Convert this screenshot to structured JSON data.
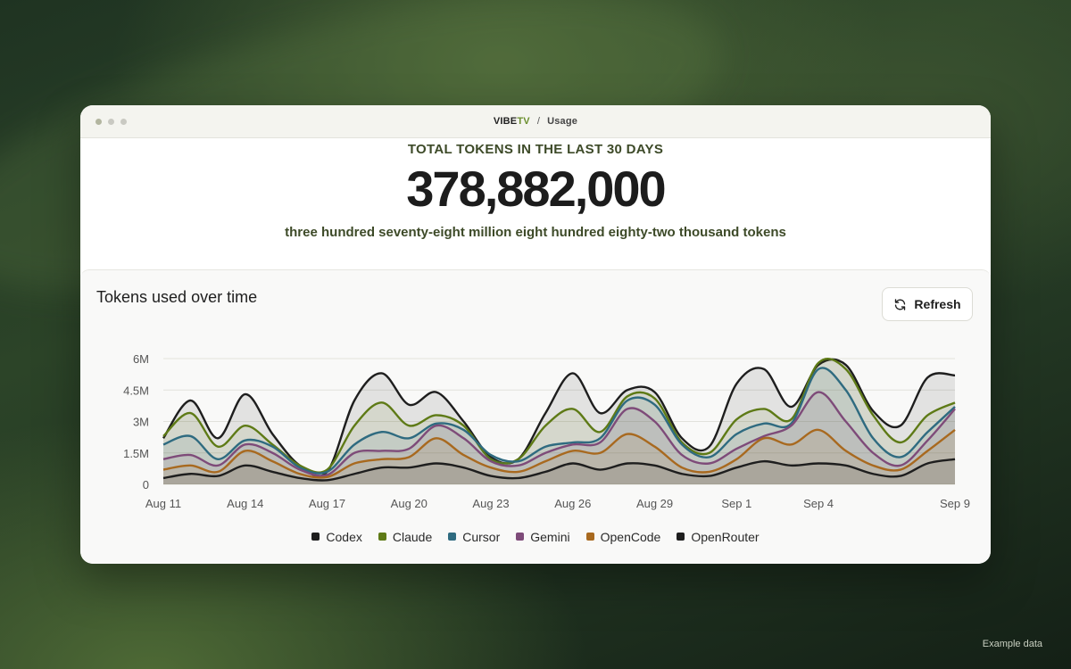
{
  "window": {
    "brand_prefix": "VIBE",
    "brand_suffix": "TV",
    "separator": "/",
    "page": "Usage"
  },
  "hero": {
    "title": "TOTAL TOKENS IN THE LAST 30 DAYS",
    "number": "378,882,000",
    "words": "three hundred seventy-eight million eight hundred eighty-two thousand tokens"
  },
  "card": {
    "title": "Tokens used over time",
    "refresh_label": "Refresh"
  },
  "footnote": "Example data",
  "colors": {
    "accent": "#6b8f2e"
  },
  "chart_data": {
    "type": "area",
    "x": [
      "Aug 11",
      "Aug 12",
      "Aug 13",
      "Aug 14",
      "Aug 15",
      "Aug 16",
      "Aug 17",
      "Aug 18",
      "Aug 19",
      "Aug 20",
      "Aug 21",
      "Aug 22",
      "Aug 23",
      "Aug 24",
      "Aug 25",
      "Aug 26",
      "Aug 27",
      "Aug 28",
      "Aug 29",
      "Aug 30",
      "Aug 31",
      "Sep 1",
      "Sep 2",
      "Sep 3",
      "Sep 4",
      "Sep 5",
      "Sep 6",
      "Sep 7",
      "Sep 8",
      "Sep 9"
    ],
    "x_tick_labels": [
      "Aug 11",
      "Aug 14",
      "Aug 17",
      "Aug 20",
      "Aug 23",
      "Aug 26",
      "Aug 29",
      "Sep 1",
      "Sep 4",
      "Sep 9"
    ],
    "y_ticks": [
      0,
      1500000,
      3000000,
      4500000,
      6000000
    ],
    "y_tick_labels": [
      "0",
      "1.5M",
      "3M",
      "4.5M",
      "6M"
    ],
    "ylim": [
      0,
      6000000
    ],
    "grid": true,
    "legend_position": "bottom-center",
    "series": [
      {
        "name": "Codex",
        "color": "#1e1e1e",
        "values": [
          2200000,
          4000000,
          2200000,
          4300000,
          2400000,
          900000,
          600000,
          4000000,
          5300000,
          3800000,
          4400000,
          3000000,
          1300000,
          1200000,
          3400000,
          5300000,
          3400000,
          4500000,
          4400000,
          2200000,
          1800000,
          4800000,
          5500000,
          3700000,
          5700000,
          5700000,
          3500000,
          2800000,
          5100000,
          5200000
        ]
      },
      {
        "name": "Claude",
        "color": "#5e7a16",
        "values": [
          2300000,
          3400000,
          1800000,
          2800000,
          1900000,
          900000,
          700000,
          2800000,
          3900000,
          2800000,
          3300000,
          2800000,
          1200000,
          1200000,
          2800000,
          3600000,
          2500000,
          4200000,
          4100000,
          2000000,
          1500000,
          3100000,
          3600000,
          3100000,
          5800000,
          5500000,
          3300000,
          2000000,
          3300000,
          3900000
        ]
      },
      {
        "name": "Cursor",
        "color": "#2f6b80",
        "values": [
          1900000,
          2300000,
          1200000,
          2100000,
          1800000,
          800000,
          600000,
          1900000,
          2500000,
          2200000,
          2900000,
          2600000,
          1400000,
          1100000,
          1800000,
          2000000,
          2200000,
          4000000,
          3800000,
          1900000,
          1300000,
          2400000,
          2900000,
          2900000,
          5500000,
          4500000,
          2200000,
          1300000,
          2500000,
          3700000
        ]
      },
      {
        "name": "Gemini",
        "color": "#7e4b79",
        "values": [
          1200000,
          1400000,
          900000,
          1900000,
          1500000,
          700000,
          450000,
          1500000,
          1600000,
          1700000,
          2800000,
          2200000,
          1100000,
          900000,
          1500000,
          1900000,
          2000000,
          3600000,
          3000000,
          1400000,
          1000000,
          1700000,
          2300000,
          2800000,
          4400000,
          3000000,
          1500000,
          900000,
          2100000,
          3600000
        ]
      },
      {
        "name": "OpenCode",
        "color": "#a8691f",
        "values": [
          700000,
          900000,
          600000,
          1600000,
          1100000,
          500000,
          350000,
          1000000,
          1200000,
          1300000,
          2200000,
          1400000,
          800000,
          600000,
          1100000,
          1600000,
          1500000,
          2400000,
          1800000,
          800000,
          600000,
          1200000,
          2200000,
          1900000,
          2600000,
          1600000,
          900000,
          700000,
          1600000,
          2600000
        ]
      },
      {
        "name": "OpenRouter",
        "color": "#1e1e1e",
        "values": [
          300000,
          500000,
          400000,
          900000,
          600000,
          300000,
          200000,
          500000,
          800000,
          800000,
          1000000,
          800000,
          400000,
          300000,
          600000,
          1000000,
          700000,
          1000000,
          900000,
          500000,
          400000,
          800000,
          1100000,
          900000,
          1000000,
          900000,
          500000,
          400000,
          1000000,
          1200000
        ]
      }
    ]
  }
}
